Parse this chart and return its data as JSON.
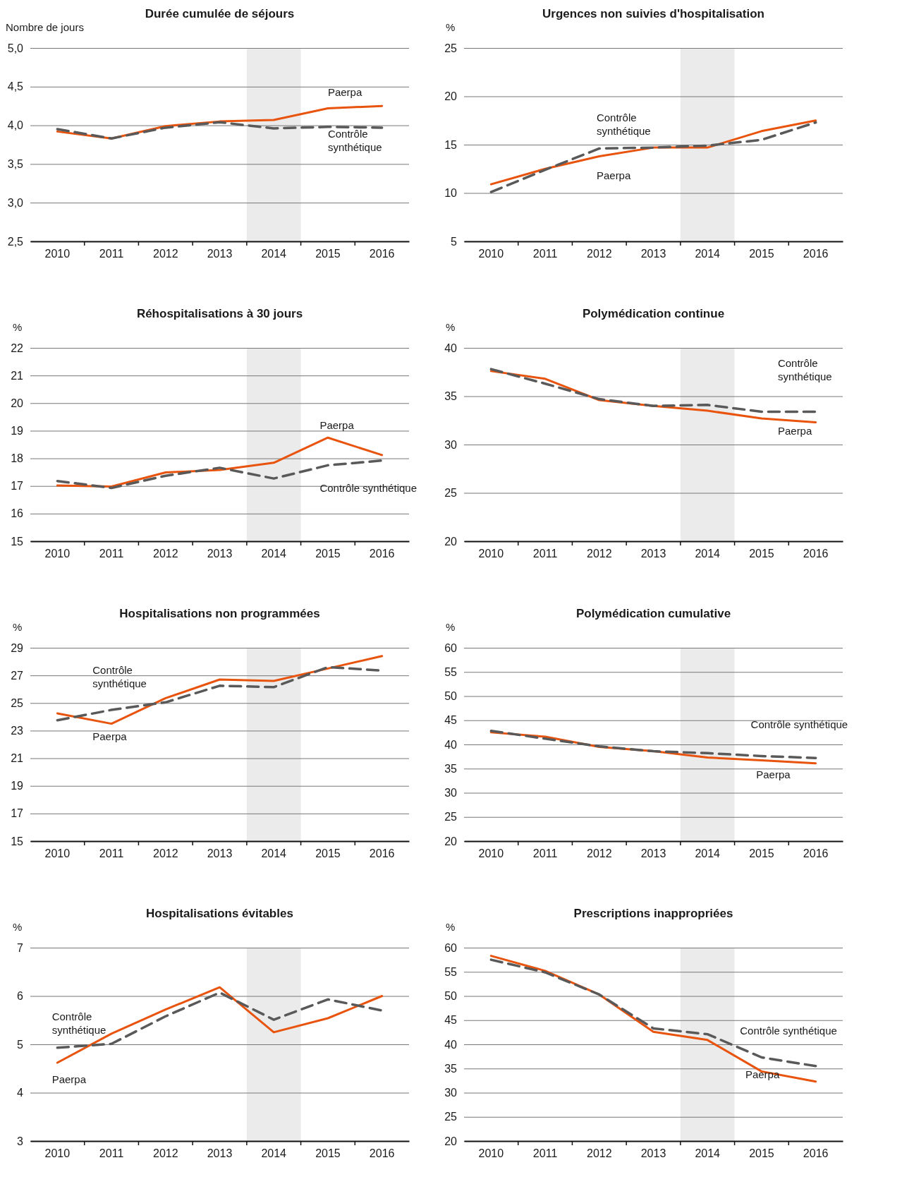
{
  "chart_data": [
    {
      "type": "line",
      "title": "Durée cumulée de séjours",
      "ylabel": "Nombre de jours",
      "categories": [
        "2010",
        "2011",
        "2012",
        "2013",
        "2014",
        "2015",
        "2016"
      ],
      "series": [
        {
          "name": "Paerpa",
          "color": "#e8530e",
          "line_style": "solid",
          "values": [
            3.92,
            3.83,
            3.99,
            4.05,
            4.07,
            4.22,
            4.25
          ]
        },
        {
          "name": "Contrôle synthétique",
          "color": "#595959",
          "line_style": "dashed",
          "values": [
            3.95,
            3.83,
            3.97,
            4.04,
            3.96,
            3.98,
            3.97
          ]
        }
      ],
      "ylim": [
        2.5,
        5
      ],
      "yticks": [
        {
          "value": 2.5,
          "label": "2,5"
        },
        {
          "value": 3,
          "label": "3,0"
        },
        {
          "value": 3.5,
          "label": "3,5"
        },
        {
          "value": 4,
          "label": "4,0"
        },
        {
          "value": 4.5,
          "label": "4,5"
        },
        {
          "value": 5,
          "label": "5,0"
        }
      ],
      "grid": "y",
      "bands": [
        {
          "axis": "x",
          "from": "2014",
          "to": "2014",
          "color": "#ebebeb"
        }
      ]
    },
    {
      "type": "line",
      "title": "Urgences non suivies d'hospitalisation",
      "ylabel": "%",
      "categories": [
        "2010",
        "2011",
        "2012",
        "2013",
        "2014",
        "2015",
        "2016"
      ],
      "series": [
        {
          "name": "Paerpa",
          "color": "#e8530e",
          "line_style": "solid",
          "values": [
            10.9,
            12.5,
            13.8,
            14.7,
            14.7,
            16.4,
            17.5
          ]
        },
        {
          "name": "Contrôle synthétique",
          "color": "#595959",
          "line_style": "dashed",
          "values": [
            10.1,
            12.4,
            14.6,
            14.7,
            14.9,
            15.5,
            17.3
          ]
        }
      ],
      "ylim": [
        5,
        25
      ],
      "yticks": [
        5,
        10,
        15,
        20,
        25
      ],
      "grid": "y",
      "bands": [
        {
          "axis": "x",
          "from": "2014",
          "to": "2014",
          "color": "#ebebeb"
        }
      ]
    },
    {
      "type": "line",
      "title": "Réhospitalisations à 30 jours",
      "ylabel": "%",
      "categories": [
        "2010",
        "2011",
        "2012",
        "2013",
        "2014",
        "2015",
        "2016"
      ],
      "series": [
        {
          "name": "Paerpa",
          "color": "#e8530e",
          "line_style": "solid",
          "values": [
            17.02,
            16.98,
            17.49,
            17.58,
            17.84,
            18.75,
            18.12
          ]
        },
        {
          "name": "Contrôle synthétique",
          "color": "#595959",
          "line_style": "dashed",
          "values": [
            17.18,
            16.93,
            17.37,
            17.66,
            17.27,
            17.75,
            17.92
          ]
        }
      ],
      "ylim": [
        15,
        22
      ],
      "yticks": [
        15,
        16,
        17,
        18,
        19,
        20,
        21,
        22
      ],
      "grid": "y",
      "bands": [
        {
          "axis": "x",
          "from": "2014",
          "to": "2014",
          "color": "#ebebeb"
        }
      ]
    },
    {
      "type": "line",
      "title": "Polymédication continue",
      "ylabel": "%",
      "categories": [
        "2010",
        "2011",
        "2012",
        "2013",
        "2014",
        "2015",
        "2016"
      ],
      "series": [
        {
          "name": "Paerpa",
          "color": "#e8530e",
          "line_style": "solid",
          "values": [
            37.6,
            36.8,
            34.6,
            34.0,
            33.5,
            32.7,
            32.3
          ]
        },
        {
          "name": "Contrôle synthétique",
          "color": "#595959",
          "line_style": "dashed",
          "values": [
            37.8,
            36.3,
            34.7,
            34.0,
            34.1,
            33.4,
            33.4
          ]
        }
      ],
      "ylim": [
        20,
        40
      ],
      "yticks": [
        20,
        25,
        30,
        35,
        40
      ],
      "grid": "y",
      "bands": [
        {
          "axis": "x",
          "from": "2014",
          "to": "2014",
          "color": "#ebebeb"
        }
      ]
    },
    {
      "type": "line",
      "title": "Hospitalisations non programmées",
      "ylabel": "%",
      "categories": [
        "2010",
        "2011",
        "2012",
        "2013",
        "2014",
        "2015",
        "2016"
      ],
      "series": [
        {
          "name": "Paerpa",
          "color": "#e8530e",
          "line_style": "solid",
          "values": [
            24.25,
            23.5,
            25.35,
            26.7,
            26.6,
            27.5,
            28.4
          ]
        },
        {
          "name": "Contrôle synthétique",
          "color": "#595959",
          "line_style": "dashed",
          "values": [
            23.75,
            24.5,
            25.05,
            26.25,
            26.15,
            27.6,
            27.35
          ]
        }
      ],
      "ylim": [
        15,
        29
      ],
      "yticks": [
        15,
        17,
        19,
        21,
        23,
        25,
        27,
        29
      ],
      "grid": "y",
      "bands": [
        {
          "axis": "x",
          "from": "2014",
          "to": "2014",
          "color": "#ebebeb"
        }
      ]
    },
    {
      "type": "line",
      "title": "Polymédication cumulative",
      "ylabel": "%",
      "categories": [
        "2010",
        "2011",
        "2012",
        "2013",
        "2014",
        "2015",
        "2016"
      ],
      "series": [
        {
          "name": "Paerpa",
          "color": "#e8530e",
          "line_style": "solid",
          "values": [
            42.5,
            41.6,
            39.5,
            38.6,
            37.3,
            36.7,
            36.1
          ]
        },
        {
          "name": "Contrôle synthétique",
          "color": "#595959",
          "line_style": "dashed",
          "values": [
            42.8,
            41.2,
            39.6,
            38.6,
            38.2,
            37.6,
            37.2
          ]
        }
      ],
      "ylim": [
        20,
        60
      ],
      "yticks": [
        20,
        25,
        30,
        35,
        40,
        45,
        50,
        55,
        60
      ],
      "grid": "y",
      "bands": [
        {
          "axis": "x",
          "from": "2014",
          "to": "2014",
          "color": "#ebebeb"
        }
      ]
    },
    {
      "type": "line",
      "title": "Hospitalisations évitables",
      "ylabel": "%",
      "categories": [
        "2010",
        "2011",
        "2012",
        "2013",
        "2014",
        "2015",
        "2016"
      ],
      "series": [
        {
          "name": "Paerpa",
          "color": "#e8530e",
          "line_style": "solid",
          "values": [
            4.62,
            5.22,
            5.72,
            6.18,
            5.25,
            5.54,
            6.0
          ]
        },
        {
          "name": "Contrôle synthétique",
          "color": "#595959",
          "line_style": "dashed",
          "values": [
            4.93,
            5.01,
            5.58,
            6.07,
            5.51,
            5.93,
            5.7
          ]
        }
      ],
      "ylim": [
        3,
        7
      ],
      "yticks": [
        3,
        4,
        5,
        6,
        7
      ],
      "grid": "y",
      "bands": [
        {
          "axis": "x",
          "from": "2014",
          "to": "2014",
          "color": "#ebebeb"
        }
      ]
    },
    {
      "type": "line",
      "title": "Prescriptions inappropriées",
      "ylabel": "%",
      "categories": [
        "2010",
        "2011",
        "2012",
        "2013",
        "2014",
        "2015",
        "2016"
      ],
      "series": [
        {
          "name": "Paerpa",
          "color": "#e8530e",
          "line_style": "solid",
          "values": [
            58.3,
            55.2,
            50.3,
            42.6,
            40.9,
            34.4,
            32.3
          ]
        },
        {
          "name": "Contrôle synthétique",
          "color": "#595959",
          "line_style": "dashed",
          "values": [
            57.5,
            54.9,
            50.3,
            43.3,
            42.1,
            37.3,
            35.5
          ]
        }
      ],
      "ylim": [
        20,
        60
      ],
      "yticks": [
        20,
        25,
        30,
        35,
        40,
        45,
        50,
        55,
        60
      ],
      "grid": "y",
      "bands": [
        {
          "axis": "x",
          "from": "2014",
          "to": "2014",
          "color": "#ebebeb"
        }
      ]
    }
  ]
}
